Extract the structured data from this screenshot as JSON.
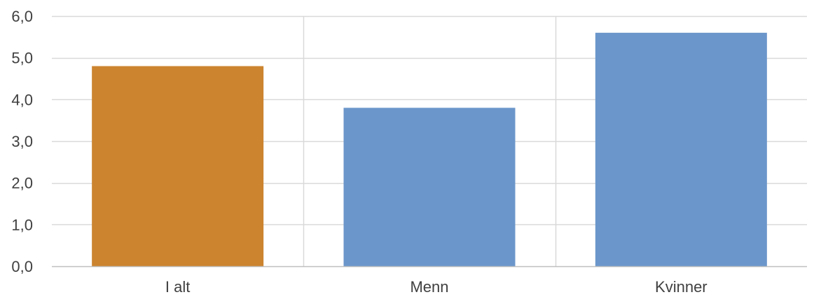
{
  "chart_data": {
    "type": "bar",
    "title": "",
    "xlabel": "",
    "ylabel": "",
    "categories": [
      "I alt",
      "Menn",
      "Kvinner"
    ],
    "values": [
      4.8,
      3.8,
      5.6
    ],
    "bar_colors": [
      "#cc842f",
      "#6b96cb",
      "#6b96cb"
    ],
    "ylim": [
      0,
      6
    ],
    "y_ticks": [
      0,
      1,
      2,
      3,
      4,
      5,
      6
    ],
    "y_tick_labels": [
      "0,0",
      "1,0",
      "2,0",
      "3,0",
      "4,0",
      "5,0",
      "6,0"
    ],
    "grid": true,
    "vertical_category_dividers": true,
    "gridline_color": "#d9d9d9",
    "axis_color": "#bfbfbf",
    "text_color": "#404040",
    "legend": "none"
  }
}
